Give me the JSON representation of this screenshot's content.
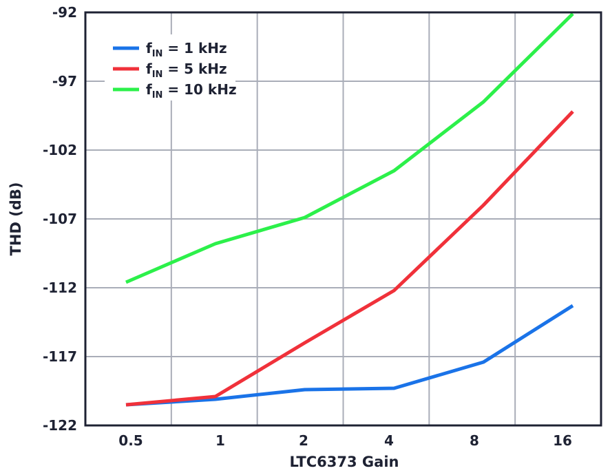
{
  "chart_data": {
    "type": "line",
    "title": "",
    "xlabel": "LTC6373 Gain",
    "ylabel": "THD (dB)",
    "x_scale": "log2",
    "x_ticks": [
      0.5,
      1,
      2,
      4,
      8,
      16
    ],
    "x_tick_labels": [
      "0.5",
      "1",
      "2",
      "4",
      "8",
      "16"
    ],
    "y_ticks": [
      -92,
      -97,
      -102,
      -107,
      -112,
      -117,
      -122
    ],
    "y_tick_labels": [
      "-92",
      "-97",
      "-102",
      "-107",
      "-112",
      "-117",
      "-122"
    ],
    "ylim": [
      -122,
      -92
    ],
    "grid": true,
    "legend_position": "top-left",
    "series": [
      {
        "name": "fIN = 1 kHz",
        "legend_prefix": "f",
        "legend_sub": "IN",
        "legend_suffix": " = 1 kHz",
        "color": "#1a73e8",
        "x": [
          0.5,
          1,
          2,
          4,
          8,
          16
        ],
        "values": [
          -120.5,
          -120.1,
          -119.4,
          -119.3,
          -117.4,
          -113.3
        ]
      },
      {
        "name": "fIN = 5 kHz",
        "legend_prefix": "f",
        "legend_sub": "IN",
        "legend_suffix": " = 5 kHz",
        "color": "#f0313a",
        "x": [
          0.5,
          1,
          2,
          4,
          8,
          16
        ],
        "values": [
          -120.5,
          -119.9,
          -116.0,
          -112.2,
          -106.0,
          -99.2
        ]
      },
      {
        "name": "fIN = 10 kHz",
        "legend_prefix": "f",
        "legend_sub": "IN",
        "legend_suffix": " = 10 kHz",
        "color": "#2cf04a",
        "x": [
          0.5,
          1,
          2,
          4,
          8,
          16
        ],
        "values": [
          -111.6,
          -108.8,
          -106.9,
          -103.5,
          -98.5,
          -92.1
        ]
      }
    ]
  },
  "colors": {
    "frame": "#1e2233",
    "grid": "#a9adb8",
    "text": "#1e2233",
    "background": "#ffffff"
  }
}
